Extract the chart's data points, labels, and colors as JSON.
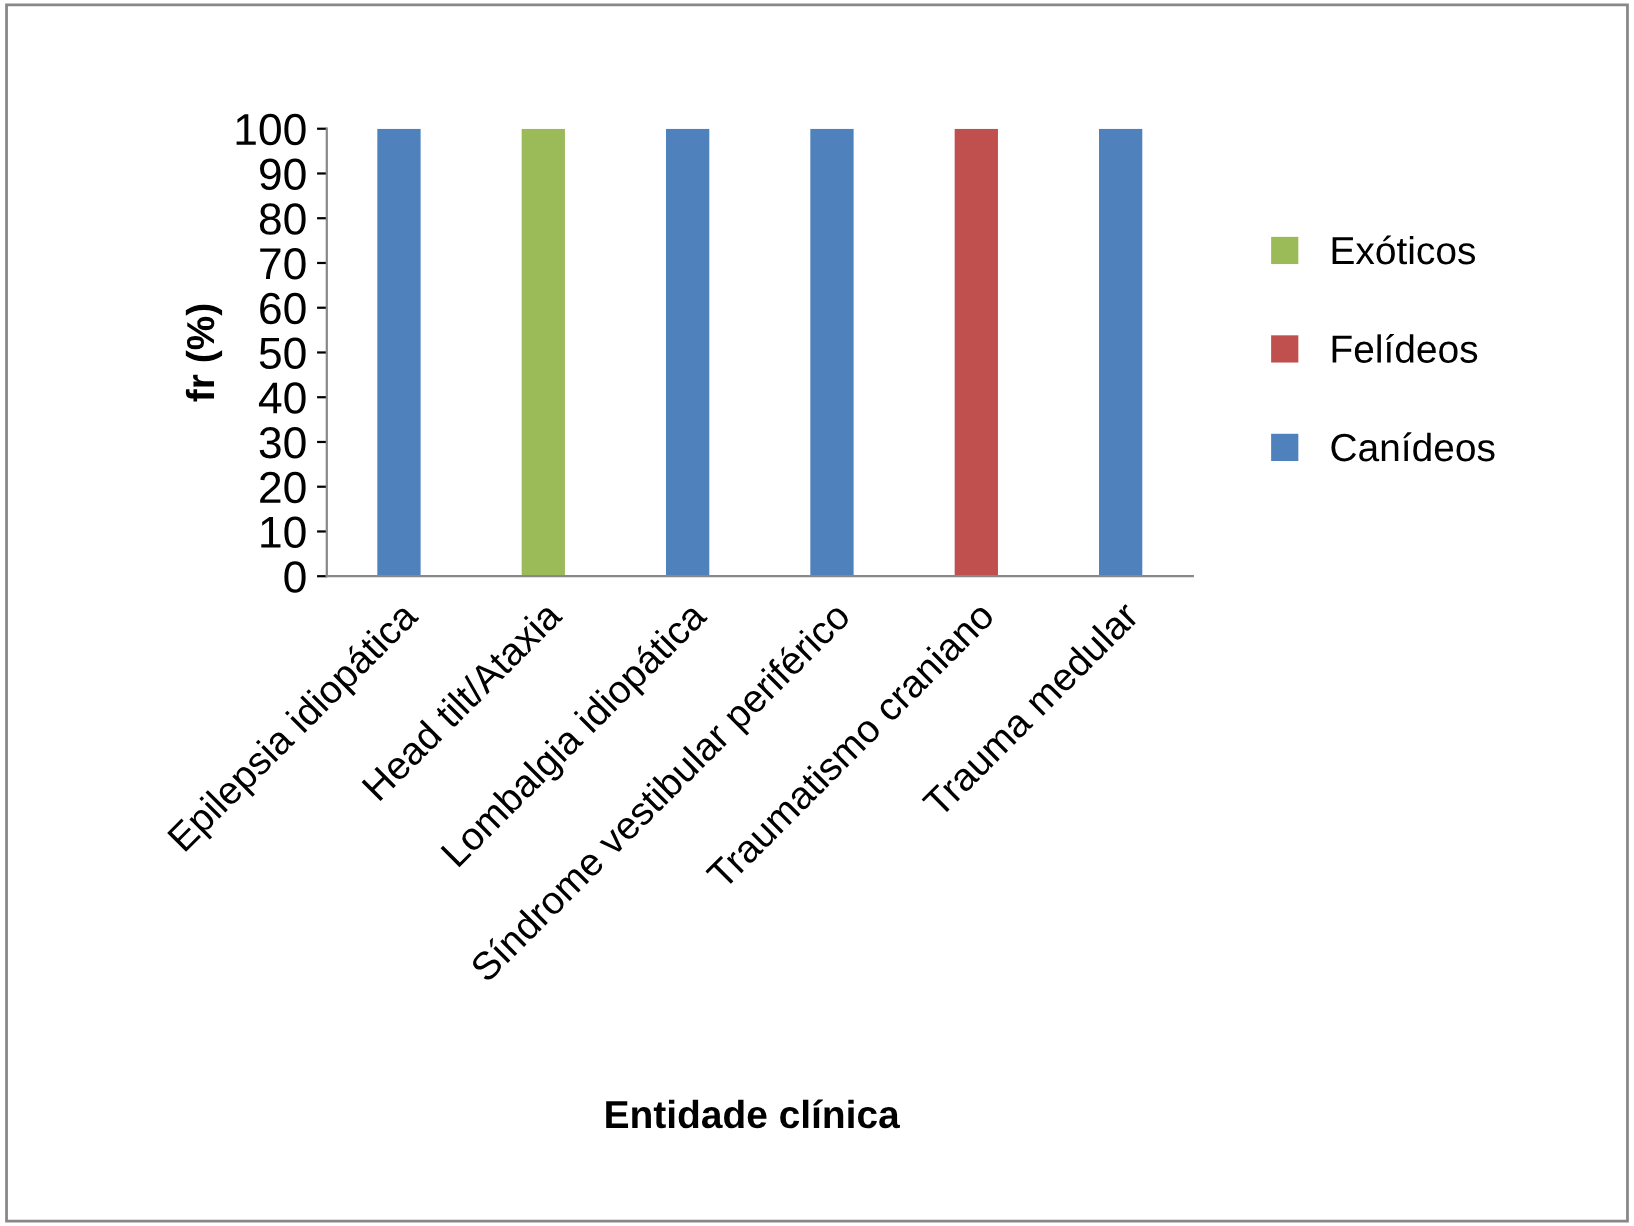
{
  "chart_data": {
    "type": "bar",
    "stacked": true,
    "xlabel": "Entidade clínica",
    "ylabel": "fr (%)",
    "categories": [
      "Epilepsia idiopática",
      "Head tilt/Ataxia",
      "Lombalgia idiopática",
      "Síndrome vestibular periférico",
      "Traumatismo craniano",
      "Trauma medular"
    ],
    "series": [
      {
        "name": "Canídeos",
        "color": "#4f81bd",
        "values": [
          100,
          0,
          100,
          100,
          0,
          100
        ]
      },
      {
        "name": "Felídeos",
        "color": "#c0504d",
        "values": [
          0,
          0,
          0,
          0,
          100,
          0
        ]
      },
      {
        "name": "Exóticos",
        "color": "#9bbb59",
        "values": [
          0,
          100,
          0,
          0,
          0,
          0
        ]
      }
    ],
    "ylim": [
      0,
      100
    ],
    "yticks": [
      0,
      10,
      20,
      30,
      40,
      50,
      60,
      70,
      80,
      90,
      100
    ],
    "grid": false,
    "legend": "right"
  }
}
